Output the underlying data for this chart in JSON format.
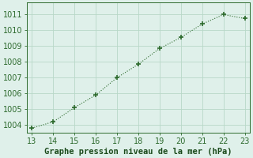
{
  "x": [
    13,
    14,
    15,
    16,
    17,
    18,
    19,
    20,
    21,
    22,
    23
  ],
  "y": [
    1003.8,
    1004.2,
    1005.1,
    1005.9,
    1007.0,
    1007.85,
    1008.85,
    1009.55,
    1010.4,
    1011.0,
    1010.75
  ],
  "xlabel": "Graphe pression niveau de la mer (hPa)",
  "xlim": [
    12.75,
    23.25
  ],
  "ylim": [
    1003.5,
    1011.75
  ],
  "xticks": [
    13,
    14,
    15,
    16,
    17,
    18,
    19,
    20,
    21,
    22,
    23
  ],
  "yticks": [
    1004,
    1005,
    1006,
    1007,
    1008,
    1009,
    1010,
    1011
  ],
  "line_color": "#2d6a2d",
  "marker_color": "#2d6a2d",
  "bg_color": "#dff0ea",
  "grid_color": "#b8d8c8",
  "tick_color": "#2d6a2d",
  "label_color": "#1a4a1a",
  "xlabel_fontsize": 7.5,
  "tick_fontsize": 7.0
}
